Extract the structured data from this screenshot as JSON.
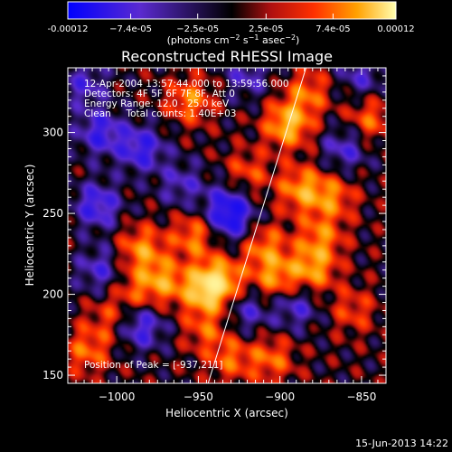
{
  "chart_data": {
    "type": "heatmap",
    "title": "Reconstructed RHESSI Image",
    "xlabel": "Heliocentric X (arcsec)",
    "ylabel": "Heliocentric Y (arcsec)",
    "xlim": [
      -1030,
      -835
    ],
    "ylim": [
      145,
      340
    ],
    "xticks": [
      -1000,
      -950,
      -900,
      -850
    ],
    "xtick_labels": [
      "−1000",
      "−950",
      "−900",
      "−850"
    ],
    "yticks": [
      150,
      200,
      250,
      300
    ],
    "ytick_labels": [
      "150",
      "200",
      "250",
      "300"
    ],
    "colorbar": {
      "min": -0.00012,
      "max": 0.00012,
      "tick_values": [
        -0.00012,
        -7.4e-05,
        -2.5e-05,
        2.5e-05,
        7.4e-05,
        0.00012
      ],
      "tick_labels": [
        "-0.00012",
        "−7.4e-05",
        "−2.5e-05",
        "2.5e-05",
        "7.4e-05",
        "0.00012"
      ],
      "colors": [
        "#0000ff",
        "#5a2ad0",
        "#000000",
        "#b01010",
        "#ff3000",
        "#ffa000",
        "#ffffb0"
      ]
    },
    "limb_line": [
      [
        -944,
        145
      ],
      [
        -884,
        340
      ]
    ],
    "peak": {
      "x": -937,
      "y": 211,
      "label": "Position of Peak = [-937,211]"
    },
    "annotations": [
      "12-Apr-2004 13:57:44.000 to 13:59:56.000",
      "Detectors: 4F 5F 6F 7F 8F, Att 0",
      "Energy Range: 12.0 - 25.0 keV",
      "Clean     Total counts: 1.40E+03"
    ],
    "blobs": [
      {
        "x": -937,
        "y": 208,
        "v": 1.0
      },
      {
        "x": -947,
        "y": 202,
        "v": 0.85
      },
      {
        "x": -952,
        "y": 236,
        "v": 0.7
      },
      {
        "x": -972,
        "y": 208,
        "v": 0.75
      },
      {
        "x": -985,
        "y": 228,
        "v": 0.75
      },
      {
        "x": -990,
        "y": 202,
        "v": 0.45
      },
      {
        "x": -910,
        "y": 230,
        "v": 0.65
      },
      {
        "x": -903,
        "y": 210,
        "v": 0.75
      },
      {
        "x": -880,
        "y": 215,
        "v": 0.8
      },
      {
        "x": -875,
        "y": 235,
        "v": 0.65
      },
      {
        "x": -887,
        "y": 265,
        "v": 0.8
      },
      {
        "x": -895,
        "y": 305,
        "v": 1.0
      },
      {
        "x": -868,
        "y": 260,
        "v": 0.65
      },
      {
        "x": -883,
        "y": 325,
        "v": 0.6
      },
      {
        "x": -955,
        "y": 320,
        "v": 0.7
      },
      {
        "x": -905,
        "y": 160,
        "v": 0.6
      },
      {
        "x": -930,
        "y": 160,
        "v": 0.55
      },
      {
        "x": -945,
        "y": 178,
        "v": 0.5
      },
      {
        "x": -1018,
        "y": 165,
        "v": 0.6
      },
      {
        "x": -1005,
        "y": 185,
        "v": 0.4
      },
      {
        "x": -855,
        "y": 190,
        "v": 0.45
      },
      {
        "x": -845,
        "y": 308,
        "v": 0.6
      },
      {
        "x": -920,
        "y": 275,
        "v": 0.5
      },
      {
        "x": -985,
        "y": 290,
        "v": -0.8
      },
      {
        "x": -1012,
        "y": 255,
        "v": -0.8
      },
      {
        "x": -1010,
        "y": 300,
        "v": -0.75
      },
      {
        "x": -985,
        "y": 180,
        "v": -0.75
      },
      {
        "x": -1010,
        "y": 215,
        "v": -0.6
      },
      {
        "x": -930,
        "y": 245,
        "v": -0.7
      },
      {
        "x": -932,
        "y": 255,
        "v": -0.65
      },
      {
        "x": -920,
        "y": 190,
        "v": -0.55
      },
      {
        "x": -890,
        "y": 193,
        "v": -0.6
      },
      {
        "x": -860,
        "y": 290,
        "v": -0.6
      },
      {
        "x": -850,
        "y": 335,
        "v": -0.5
      },
      {
        "x": -920,
        "y": 335,
        "v": -0.5
      },
      {
        "x": -960,
        "y": 268,
        "v": -0.5
      },
      {
        "x": -1020,
        "y": 330,
        "v": -0.55
      }
    ]
  },
  "footer": {
    "date": "15-Jun-2013 14:22"
  }
}
